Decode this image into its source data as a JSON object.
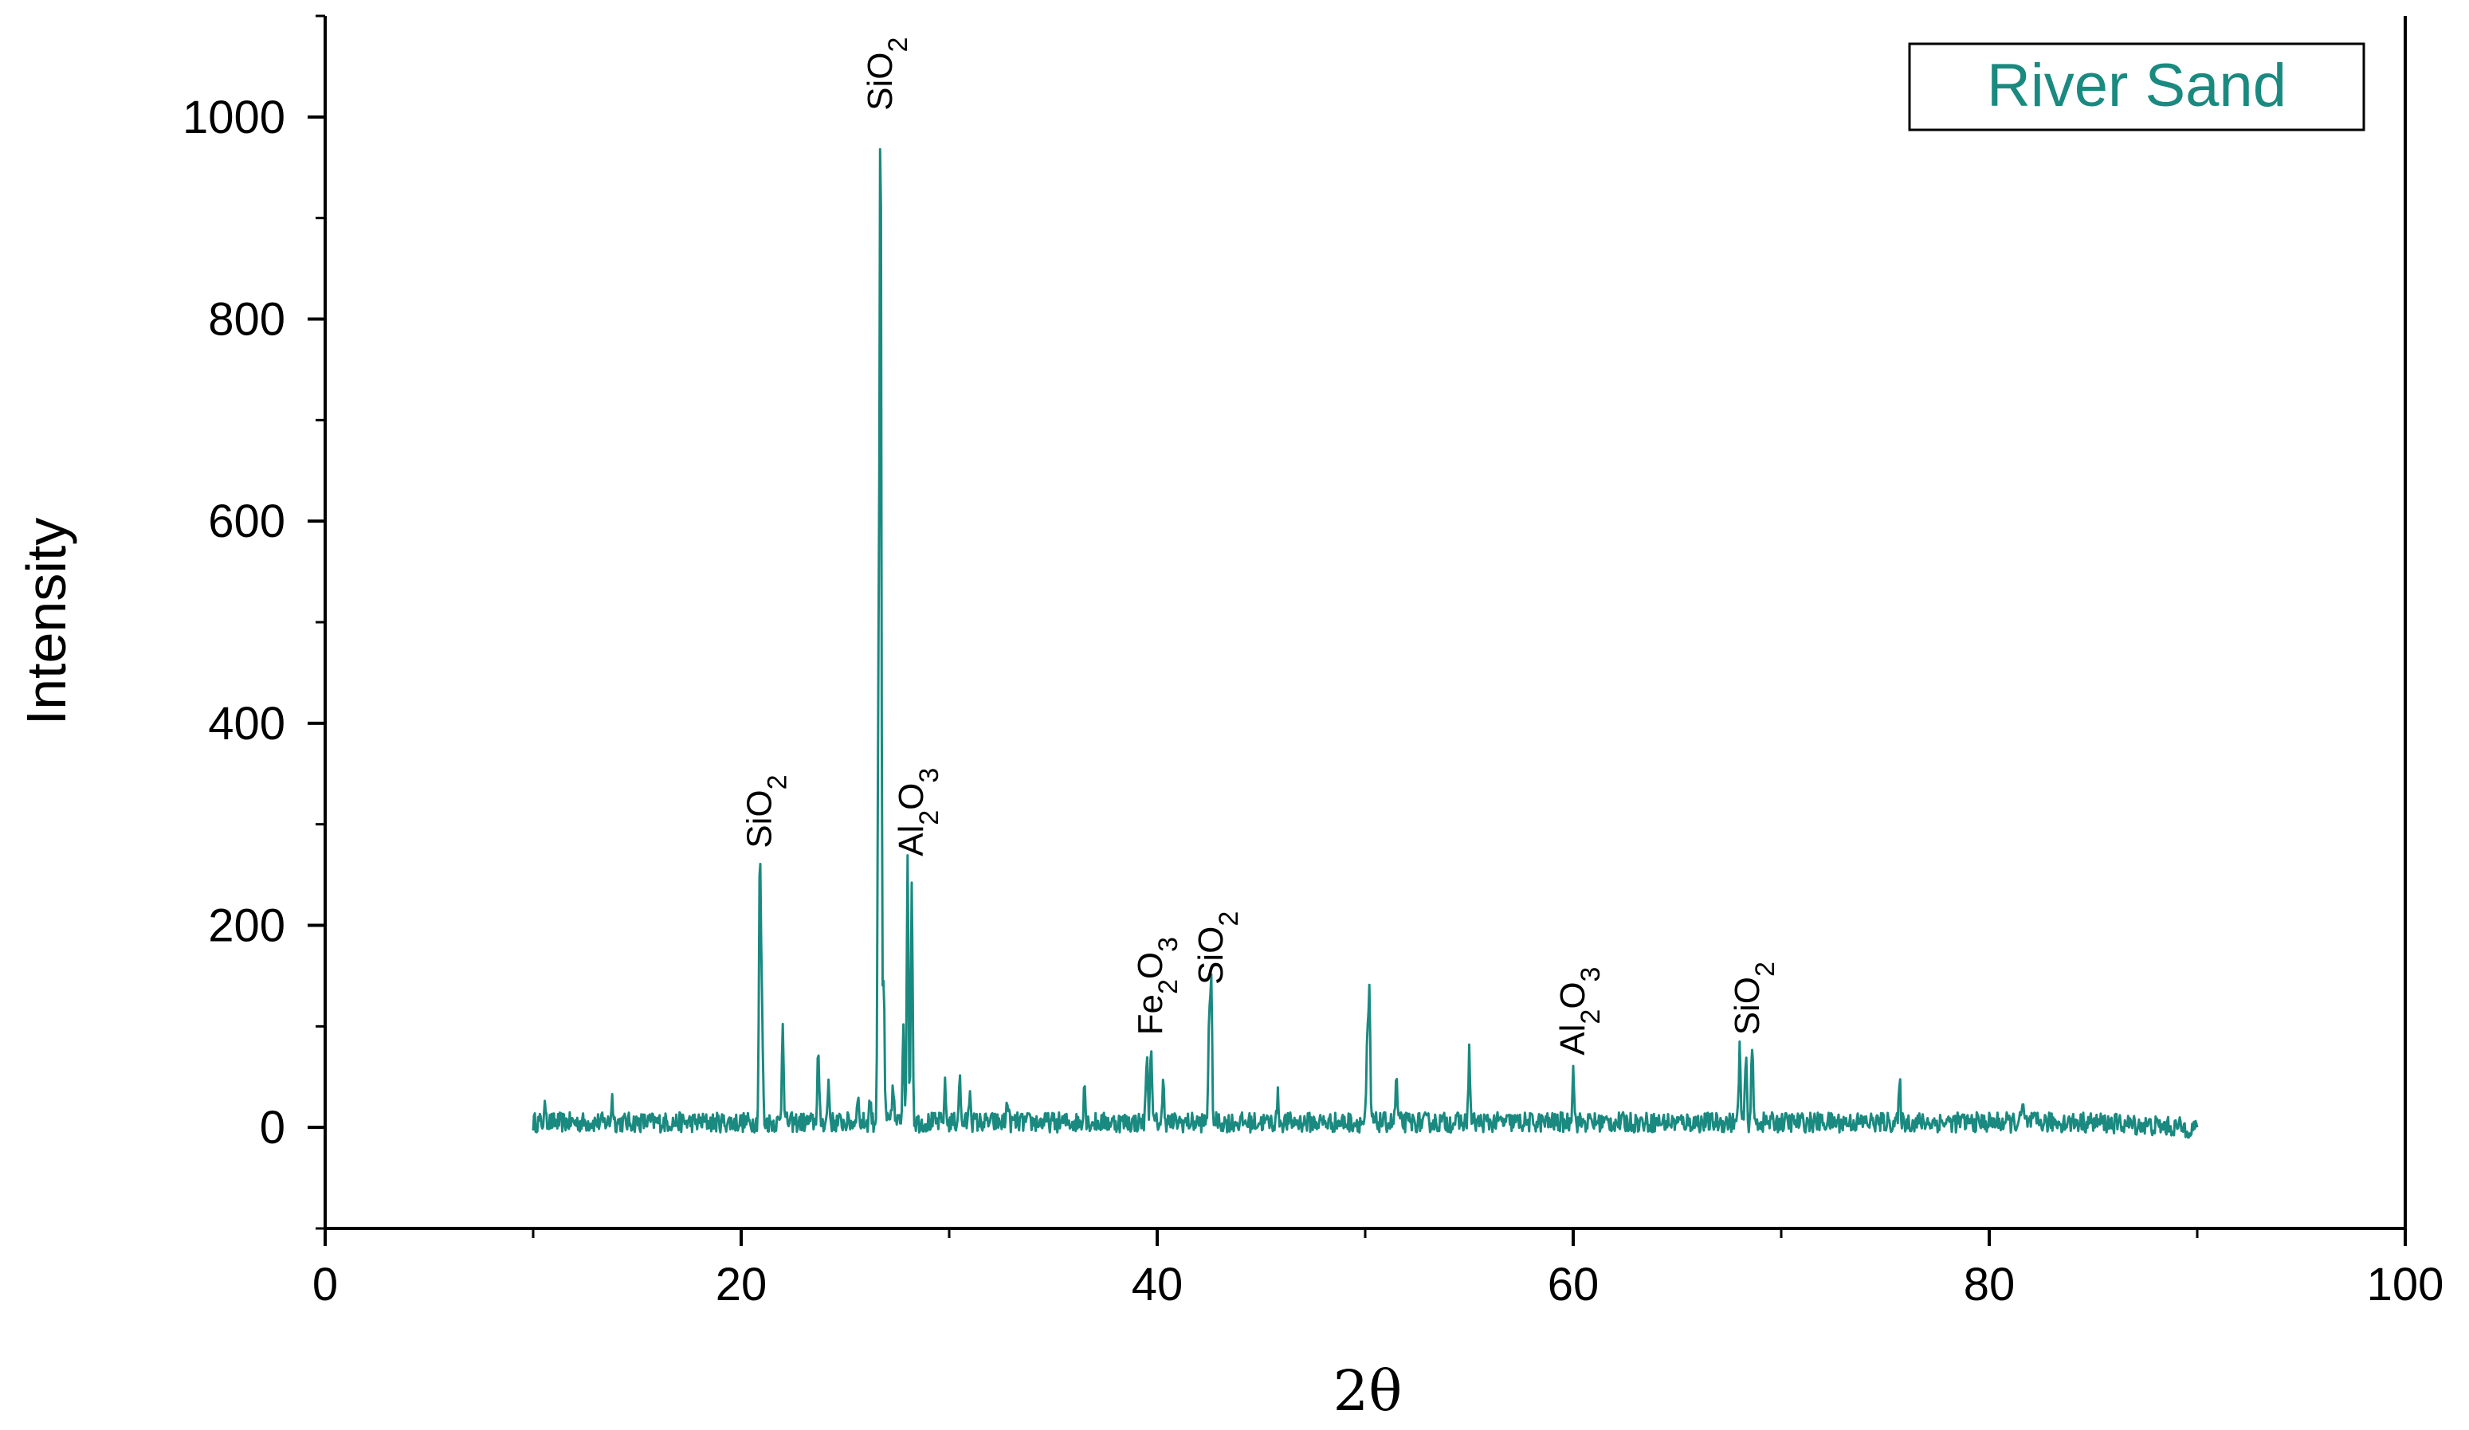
{
  "chart_data": {
    "type": "line",
    "xlabel": "2θ",
    "ylabel": "Intensity",
    "xlim": [
      0,
      100
    ],
    "ylim": [
      -100,
      1100
    ],
    "x_ticks": [
      0,
      20,
      40,
      60,
      80,
      100
    ],
    "y_ticks": [
      0,
      200,
      400,
      600,
      800,
      1000
    ],
    "grid": false,
    "legend": {
      "placement": "top-right",
      "entries": [
        "River Sand"
      ]
    },
    "colors": {
      "series": "#1a8a80",
      "axis": "#000000"
    },
    "series": [
      {
        "name": "River Sand",
        "x_range": [
          10,
          90
        ],
        "baseline": 5,
        "noise_amplitude": 10,
        "peaks": [
          {
            "x": 10.6,
            "y": 18
          },
          {
            "x": 13.8,
            "y": 25
          },
          {
            "x": 20.9,
            "y": 265
          },
          {
            "x": 21.0,
            "y": 115
          },
          {
            "x": 22.0,
            "y": 105
          },
          {
            "x": 23.7,
            "y": 70
          },
          {
            "x": 24.2,
            "y": 40
          },
          {
            "x": 25.6,
            "y": 30
          },
          {
            "x": 26.2,
            "y": 25
          },
          {
            "x": 26.6,
            "y": 420
          },
          {
            "x": 26.7,
            "y": 995
          },
          {
            "x": 26.85,
            "y": 140
          },
          {
            "x": 27.3,
            "y": 40
          },
          {
            "x": 27.8,
            "y": 100
          },
          {
            "x": 28.0,
            "y": 255
          },
          {
            "x": 28.2,
            "y": 240
          },
          {
            "x": 29.8,
            "y": 35
          },
          {
            "x": 30.5,
            "y": 45
          },
          {
            "x": 31.0,
            "y": 35
          },
          {
            "x": 32.8,
            "y": 25
          },
          {
            "x": 36.5,
            "y": 40
          },
          {
            "x": 39.5,
            "y": 70
          },
          {
            "x": 39.7,
            "y": 80
          },
          {
            "x": 40.3,
            "y": 40
          },
          {
            "x": 42.5,
            "y": 110
          },
          {
            "x": 42.6,
            "y": 130
          },
          {
            "x": 45.8,
            "y": 25
          },
          {
            "x": 50.1,
            "y": 75
          },
          {
            "x": 50.2,
            "y": 125
          },
          {
            "x": 51.5,
            "y": 45
          },
          {
            "x": 55.0,
            "y": 70
          },
          {
            "x": 60.0,
            "y": 60
          },
          {
            "x": 68.0,
            "y": 75
          },
          {
            "x": 68.3,
            "y": 65
          },
          {
            "x": 68.6,
            "y": 80
          },
          {
            "x": 75.7,
            "y": 38
          },
          {
            "x": 81.6,
            "y": 18
          }
        ]
      }
    ],
    "annotations": [
      {
        "formula": "SiO",
        "sub": "2",
        "sub2": "",
        "x": 26.7,
        "y": 1000
      },
      {
        "formula": "SiO",
        "sub": "2",
        "sub2": "",
        "x": 20.9,
        "y": 270
      },
      {
        "formula": "Al",
        "sub": "2",
        "mid": "O",
        "sub2": "3",
        "x": 28.2,
        "y": 262
      },
      {
        "formula": "Fe",
        "sub": "2",
        "mid": "O",
        "sub2": "3",
        "x": 39.7,
        "y": 85
      },
      {
        "formula": "SiO",
        "sub": "2",
        "sub2": "",
        "x": 42.6,
        "y": 135
      },
      {
        "formula": "Al",
        "sub": "2",
        "mid": "O",
        "sub2": "3",
        "x": 60.0,
        "y": 65
      },
      {
        "formula": "SiO",
        "sub": "2",
        "sub2": "",
        "x": 68.4,
        "y": 85
      }
    ]
  }
}
